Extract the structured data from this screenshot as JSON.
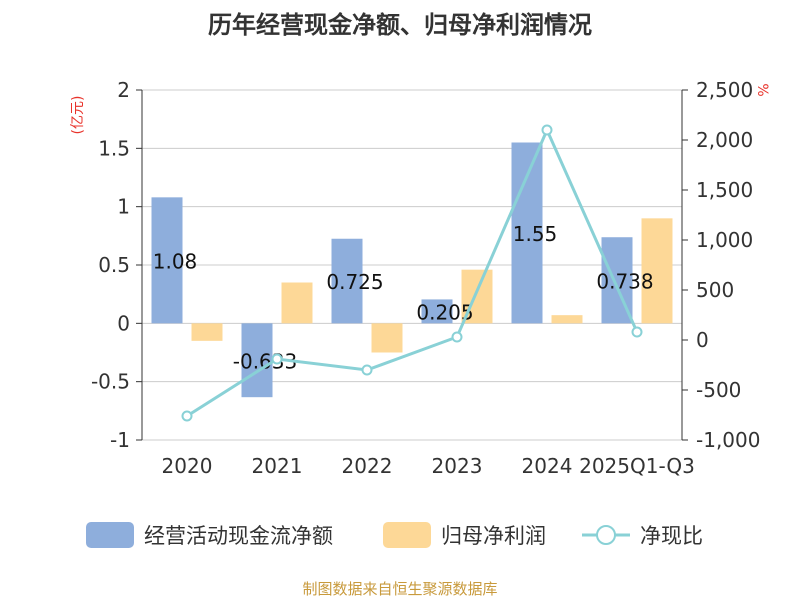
{
  "chart_data": {
    "type": "bar",
    "title": "历年经营现金净额、归母净利润情况",
    "categories": [
      "2020",
      "2021",
      "2022",
      "2023",
      "2024",
      "2025Q1-Q3"
    ],
    "left_unit": "(亿元)",
    "right_unit": "%",
    "left_ticks": [
      "2",
      "1.5",
      "1",
      "0.5",
      "0",
      "-0.5",
      "-1"
    ],
    "right_ticks": [
      "2,500",
      "2,000",
      "1,500",
      "1,000",
      "500",
      "0",
      "-500",
      "-1,000"
    ],
    "left_ylim": [
      -1,
      2
    ],
    "right_ylim": [
      -1000,
      2500
    ],
    "grid": true,
    "legend_position": "bottom",
    "series": [
      {
        "name": "经营活动现金流净额",
        "kind": "bar",
        "axis": "left",
        "color": "#8eaedc",
        "values": [
          1.08,
          -0.633,
          0.725,
          0.205,
          1.55,
          0.738
        ],
        "labels": [
          "1.08",
          "-0.633",
          "0.725",
          "0.205",
          "1.55",
          "0.738"
        ]
      },
      {
        "name": "归母净利润",
        "kind": "bar",
        "axis": "left",
        "color": "#fdd897",
        "values": [
          -0.15,
          0.35,
          -0.25,
          0.46,
          0.07,
          0.9
        ]
      },
      {
        "name": "净现比",
        "kind": "line",
        "axis": "right",
        "color": "#89d1d6",
        "values": [
          -760,
          -190,
          -300,
          30,
          2100,
          80
        ]
      }
    ]
  },
  "footer": {
    "source": "制图数据来自恒生聚源数据库"
  }
}
